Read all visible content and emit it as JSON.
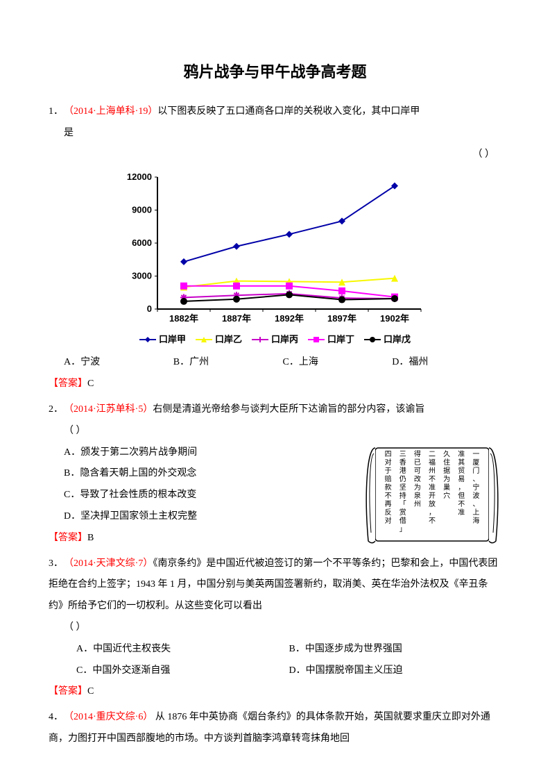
{
  "title": "鸦片战争与甲午战争高考题",
  "answer_label": "【答案】",
  "paren": "（        ）",
  "q1": {
    "num": "1．",
    "source": "（2014·上海单科·19）",
    "text1": "以下图表反映了五口通商各口岸的关税收入变化，其中口岸甲",
    "text2": "是",
    "optA": "A．宁波",
    "optB": "B．广州",
    "optC": "C．上海",
    "optD": "D．福州",
    "answer": "C"
  },
  "chart": {
    "xlabels": [
      "1882年",
      "1887年",
      "1892年",
      "1897年",
      "1902年"
    ],
    "ylabels": [
      "0",
      "3000",
      "6000",
      "9000",
      "12000"
    ],
    "ymax": 12000,
    "series": [
      {
        "name": "口岸甲",
        "color": "#0000a8",
        "marker": "diamond",
        "values": [
          4300,
          5700,
          6800,
          8000,
          11200
        ]
      },
      {
        "name": "口岸乙",
        "color": "#f7f700",
        "marker": "triangle",
        "values": [
          2000,
          2550,
          2500,
          2450,
          2800
        ]
      },
      {
        "name": "口岸丙",
        "color": "#c700c7",
        "marker": "star",
        "values": [
          1050,
          1250,
          1400,
          1000,
          950
        ]
      },
      {
        "name": "口岸丁",
        "color": "#ff00ff",
        "marker": "square",
        "values": [
          2100,
          2100,
          2100,
          1650,
          1100
        ]
      },
      {
        "name": "口岸戊",
        "color": "#000000",
        "marker": "circle",
        "values": [
          700,
          900,
          1300,
          850,
          950
        ]
      }
    ],
    "plot_bg": "#ffffff",
    "line_width": 2
  },
  "q2": {
    "num": "2．",
    "source": "（2014·江苏单科·5）",
    "text": "右侧是清道光帝给参与谈判大臣所下达谕旨的部分内容，该谕旨",
    "optA": "A．颁发于第二次鸦片战争期间",
    "optB": "B．隐含着天朝上国的外交观念",
    "optC": "C．导致了社会性质的根本改变",
    "optD": "D．坚决捍卫国家领土主权完整",
    "answer": "B",
    "scroll": {
      "lines": [
        "一  厦门、宁波、上海",
        "    准其贸易，但不准",
        "    久住据为巢穴",
        "二  福州不准开放，不",
        "    得已可改为泉州",
        "三  香港仍坚持「赏借」",
        "四  对于赔款不再反对"
      ]
    }
  },
  "q3": {
    "num": "3．",
    "source": "（2014·天津文综·7）",
    "text": "《南京条约》是中国近代被迫签订的第一个不平等条约；巴黎和会上，中国代表团拒绝在合约上签字；1943 年 1 月，中国分别与美英两国签署新约，取消美、英在华治外法权及《辛丑条约》所给予它们的一切权利。从这些变化可以看出",
    "optA": "A．中国近代主权丧失",
    "optB": "B．中国逐步成为世界强国",
    "optC": "C．中国外交逐渐自强",
    "optD": "D．中国摆脱帝国主义压迫",
    "answer": "C"
  },
  "q4": {
    "num": "4．",
    "source": "（2014·重庆文综·6）",
    "text": " 从 1876 年中英协商《烟台条约》的具体条款开始，英国就要求重庆立即对外通商，力图打开中国西部腹地的市场。中方谈判首脑李鸿章转弯抹角地回"
  }
}
